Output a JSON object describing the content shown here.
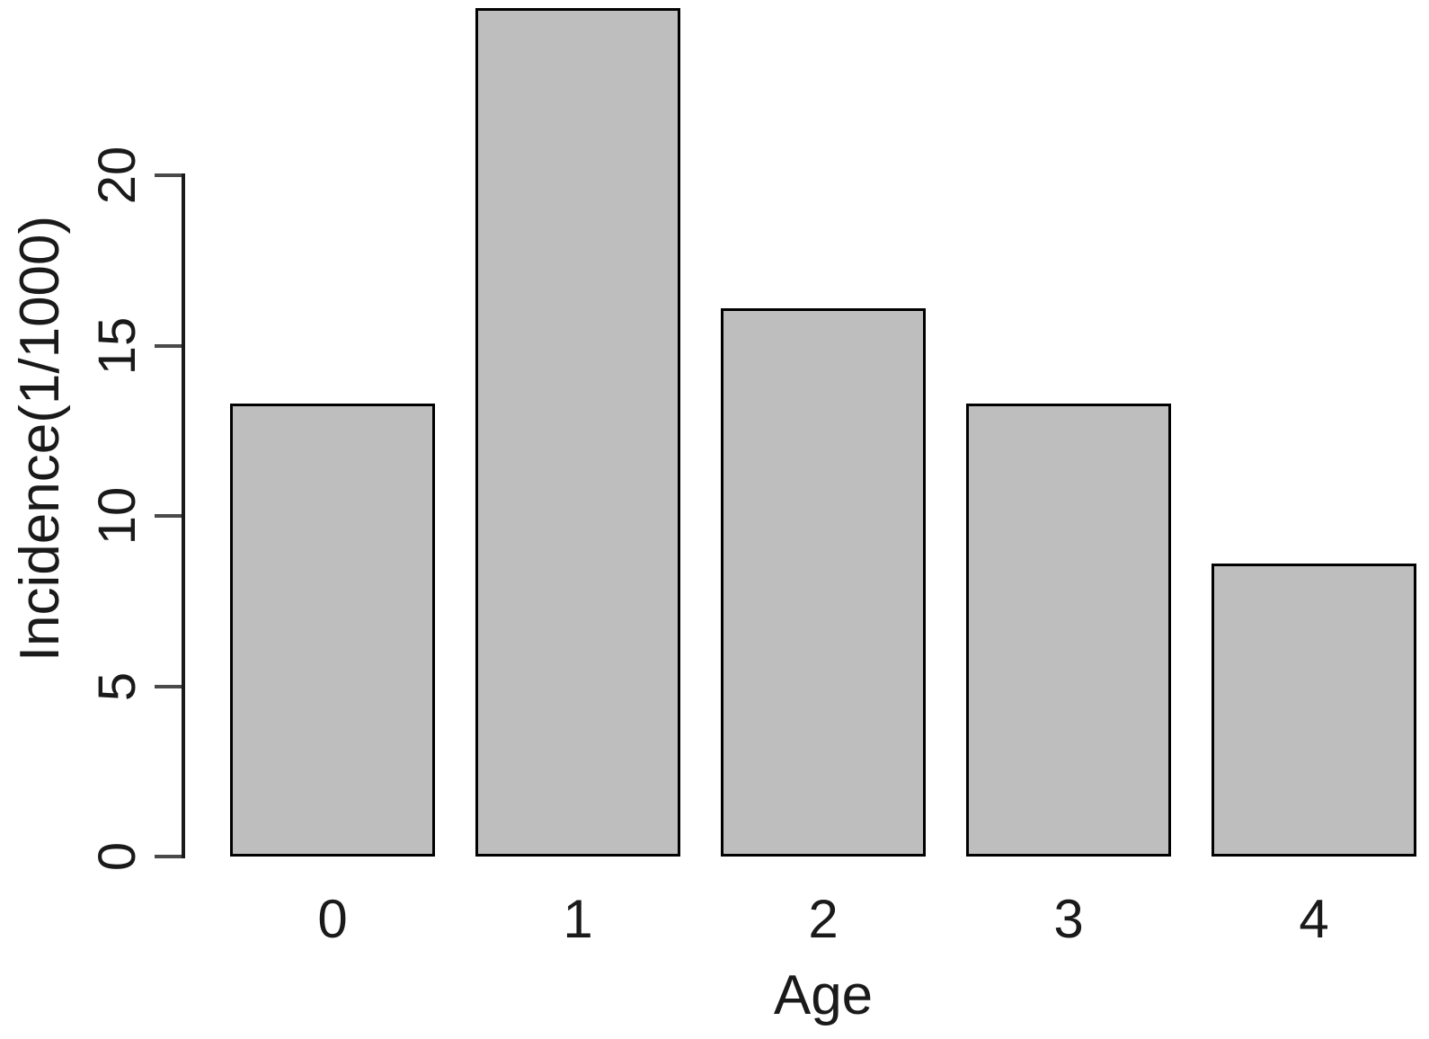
{
  "chart_data": {
    "type": "bar",
    "categories": [
      "0",
      "1",
      "2",
      "3",
      "4"
    ],
    "values": [
      13.3,
      24.9,
      16.1,
      13.3,
      8.6
    ],
    "title": "",
    "xlabel": "Age",
    "ylabel": "Incidence(1/1000)",
    "yticks": [
      0,
      5,
      10,
      15,
      20
    ],
    "ylim": [
      0,
      25.1
    ],
    "grid": false,
    "legend": false,
    "colors": {
      "bar_fill": "#bebebe",
      "bar_border": "#000000",
      "axis": "#1a1a1a",
      "tick": "#4a4a4a",
      "text": "#1a1a1a",
      "background": "#ffffff"
    }
  }
}
